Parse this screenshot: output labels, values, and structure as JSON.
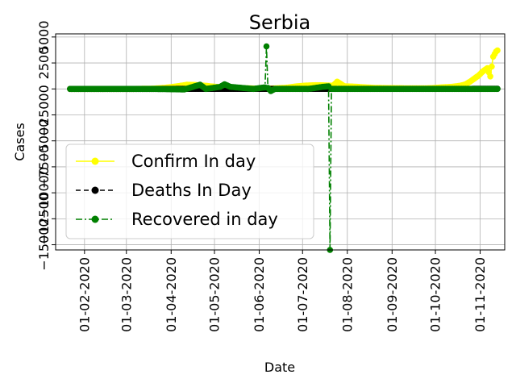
{
  "chart_data": {
    "type": "line",
    "title": "Serbia",
    "xlabel": "Date",
    "ylabel": "Cases",
    "grid": true,
    "legend_position": "center-left",
    "x_tick_labels": [
      "01-02-2020",
      "01-03-2020",
      "01-04-2020",
      "01-05-2020",
      "01-06-2020",
      "01-07-2020",
      "01-08-2020",
      "01-09-2020",
      "01-10-2020",
      "01-11-2020"
    ],
    "y_tick_labels": [
      "5000",
      "2500",
      "0",
      "−2500",
      "−5000",
      "−7500",
      "−10000",
      "−12500",
      "−15000"
    ],
    "y_ticks": [
      5000,
      2500,
      0,
      -2500,
      -5000,
      -7500,
      -10000,
      -12500,
      -15000
    ],
    "ylim": [
      -15500,
      5300
    ],
    "xlim": [
      "2020-01-12",
      "2020-11-18"
    ],
    "series": [
      {
        "name": "Confirm In day",
        "color": "#ffff00",
        "linestyle": "solid",
        "points": [
          [
            "2020-01-22",
            0
          ],
          [
            "2020-02-15",
            0
          ],
          [
            "2020-03-06",
            0
          ],
          [
            "2020-03-20",
            30
          ],
          [
            "2020-03-28",
            110
          ],
          [
            "2020-04-05",
            250
          ],
          [
            "2020-04-12",
            400
          ],
          [
            "2020-04-18",
            380
          ],
          [
            "2020-04-25",
            300
          ],
          [
            "2020-05-02",
            200
          ],
          [
            "2020-05-10",
            120
          ],
          [
            "2020-05-20",
            80
          ],
          [
            "2020-05-30",
            30
          ],
          [
            "2020-06-06",
            20
          ],
          [
            "2020-06-13",
            60
          ],
          [
            "2020-06-20",
            120
          ],
          [
            "2020-06-27",
            250
          ],
          [
            "2020-07-04",
            330
          ],
          [
            "2020-07-11",
            360
          ],
          [
            "2020-07-17",
            340
          ],
          [
            "2020-07-22",
            300
          ],
          [
            "2020-07-25",
            700
          ],
          [
            "2020-07-30",
            250
          ],
          [
            "2020-08-06",
            220
          ],
          [
            "2020-08-12",
            160
          ],
          [
            "2020-08-20",
            100
          ],
          [
            "2020-08-28",
            80
          ],
          [
            "2020-09-05",
            70
          ],
          [
            "2020-09-13",
            60
          ],
          [
            "2020-09-21",
            50
          ],
          [
            "2020-09-29",
            80
          ],
          [
            "2020-10-05",
            150
          ],
          [
            "2020-10-12",
            200
          ],
          [
            "2020-10-18",
            300
          ],
          [
            "2020-10-22",
            450
          ],
          [
            "2020-10-25",
            700
          ],
          [
            "2020-10-28",
            1000
          ],
          [
            "2020-10-31",
            1300
          ],
          [
            "2020-11-03",
            1700
          ],
          [
            "2020-11-06",
            2000
          ],
          [
            "2020-11-08",
            1200
          ],
          [
            "2020-11-10",
            3100
          ],
          [
            "2020-11-12",
            3600
          ],
          [
            "2020-11-13",
            3700
          ]
        ]
      },
      {
        "name": "Deaths In Day",
        "color": "#000000",
        "linestyle": "dashed",
        "points": [
          [
            "2020-01-22",
            0
          ],
          [
            "2020-03-20",
            0
          ],
          [
            "2020-04-15",
            5
          ],
          [
            "2020-05-15",
            3
          ],
          [
            "2020-07-15",
            10
          ],
          [
            "2020-08-15",
            5
          ],
          [
            "2020-10-15",
            8
          ],
          [
            "2020-11-13",
            15
          ]
        ]
      },
      {
        "name": "Recovered in day",
        "color": "#008000",
        "linestyle": "dashdot",
        "points": [
          [
            "2020-01-22",
            0
          ],
          [
            "2020-03-20",
            0
          ],
          [
            "2020-04-10",
            -50
          ],
          [
            "2020-04-21",
            400
          ],
          [
            "2020-04-25",
            0
          ],
          [
            "2020-05-05",
            200
          ],
          [
            "2020-05-08",
            450
          ],
          [
            "2020-05-12",
            200
          ],
          [
            "2020-05-20",
            100
          ],
          [
            "2020-05-28",
            0
          ],
          [
            "2020-06-05",
            150
          ],
          [
            "2020-06-06",
            4100
          ],
          [
            "2020-06-07",
            100
          ],
          [
            "2020-06-09",
            -200
          ],
          [
            "2020-06-12",
            0
          ],
          [
            "2020-06-20",
            0
          ],
          [
            "2020-07-05",
            0
          ],
          [
            "2020-07-15",
            200
          ],
          [
            "2020-07-19",
            250
          ],
          [
            "2020-07-20",
            -15500
          ],
          [
            "2020-07-21",
            0
          ],
          [
            "2020-08-10",
            0
          ],
          [
            "2020-09-20",
            0
          ],
          [
            "2020-10-20",
            0
          ],
          [
            "2020-11-13",
            0
          ]
        ]
      }
    ]
  }
}
